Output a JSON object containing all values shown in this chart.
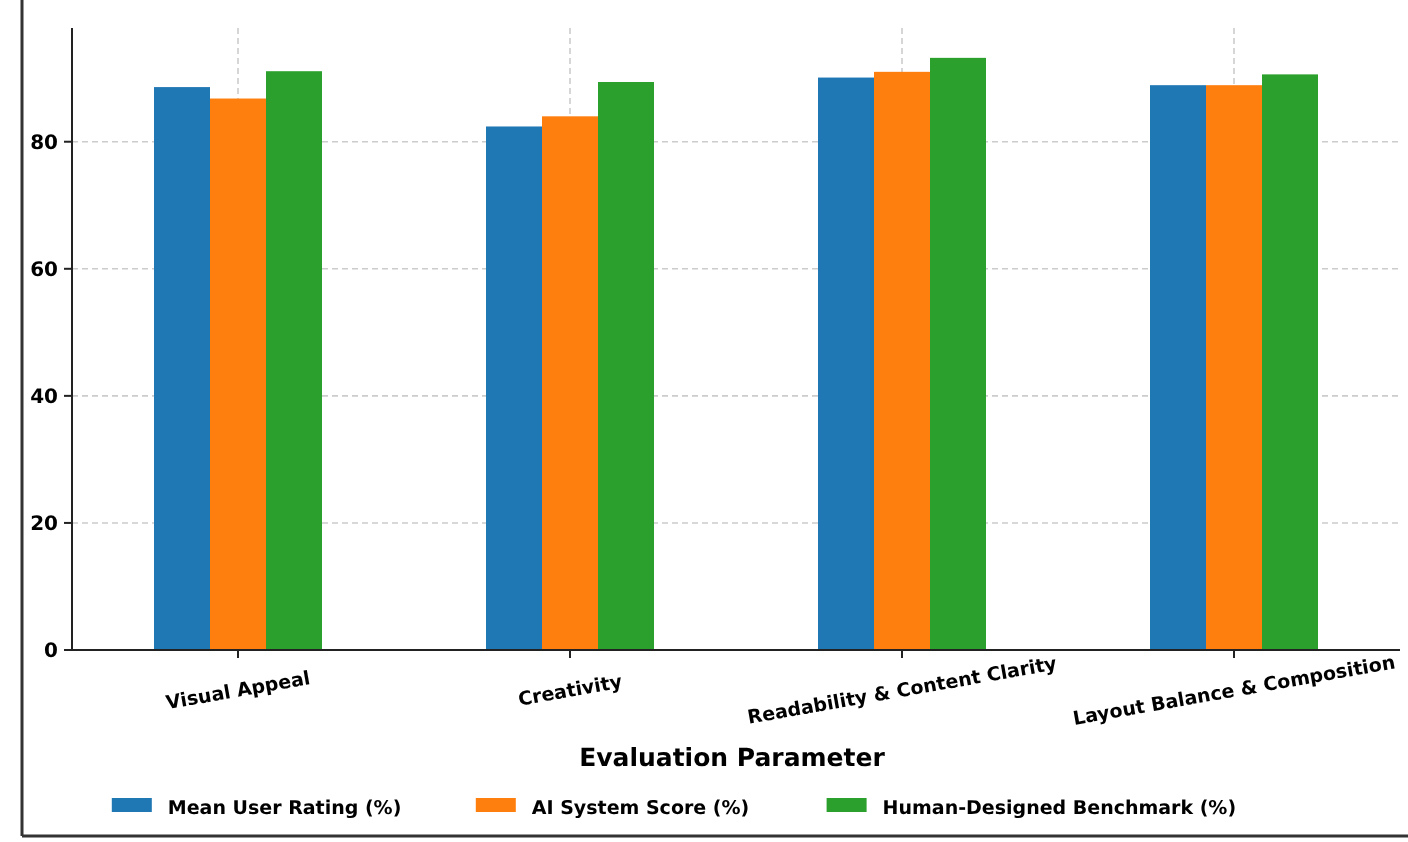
{
  "chart_data": {
    "type": "bar",
    "xlabel": "Evaluation Parameter",
    "categories": [
      "Visual Appeal",
      "Creativity",
      "Readability & Content Clarity",
      "Layout Balance & Composition"
    ],
    "series": [
      {
        "name": "Mean User Rating (%)",
        "color": "#1f77b4",
        "values": [
          88.6,
          82.4,
          90.1,
          88.9
        ]
      },
      {
        "name": "AI System Score (%)",
        "color": "#ff7f0e",
        "values": [
          86.8,
          84.0,
          91.0,
          88.9
        ]
      },
      {
        "name": "Human-Designed Benchmark (%)",
        "color": "#2ca02c",
        "values": [
          91.1,
          89.4,
          93.2,
          90.6
        ]
      }
    ],
    "ylim": [
      0,
      97.9
    ],
    "yticks": [
      0,
      20,
      40,
      60,
      80
    ],
    "grid": true,
    "legend": "bottom"
  }
}
